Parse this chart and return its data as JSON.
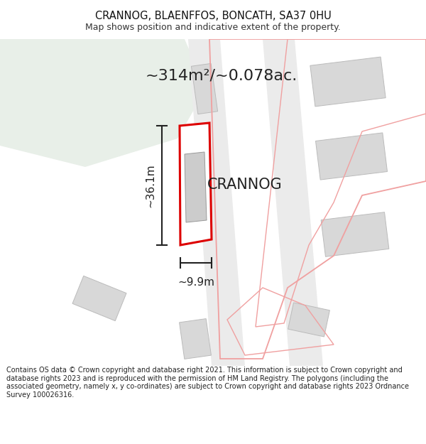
{
  "title": "CRANNOG, BLAENFFOS, BONCATH, SA37 0HU",
  "subtitle": "Map shows position and indicative extent of the property.",
  "footer": "Contains OS data © Crown copyright and database right 2021. This information is subject to Crown copyright and database rights 2023 and is reproduced with the permission of HM Land Registry. The polygons (including the associated geometry, namely x, y co-ordinates) are subject to Crown copyright and database rights 2023 Ordnance Survey 100026316.",
  "area_label": "~314m²/~0.078ac.",
  "height_label": "~36.1m",
  "width_label": "~9.9m",
  "property_label": "CRANNOG",
  "bg_color": "#ffffff",
  "green_fill": "#e8efe8",
  "gray_bld": "#d8d8d8",
  "gray_bld_edge": "#bbbbbb",
  "road_fill": "#ebebeb",
  "red_color": "#dd0000",
  "pink_color": "#f0a0a0",
  "dark_line": "#222222",
  "title_color": "#111111",
  "subtitle_color": "#333333",
  "footer_color": "#222222"
}
